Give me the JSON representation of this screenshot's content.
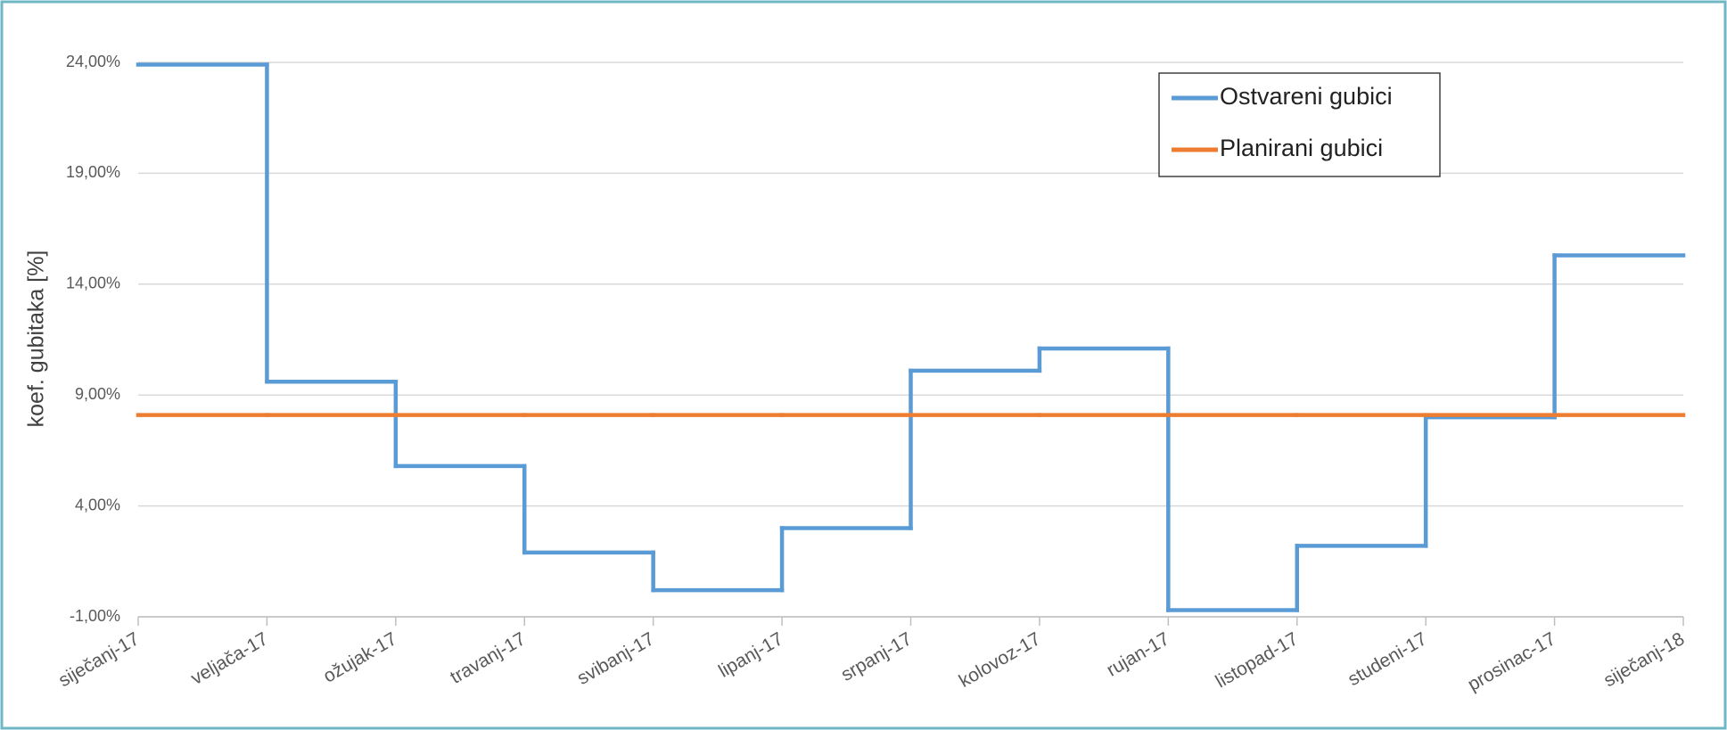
{
  "chart_data": {
    "type": "step",
    "y_label": "koef. gubitaka [%]",
    "categories": [
      "siječanj-17",
      "veljača-17",
      "ožujak-17",
      "travanj-17",
      "svibanj-17",
      "lipanj-17",
      "srpanj-17",
      "kolovoz-17",
      "rujan-17",
      "listopad-17",
      "studeni-17",
      "prosinac-17",
      "siječanj-18"
    ],
    "series": [
      {
        "name": "Ostvareni gubici",
        "color": "#5b9bd5",
        "values": [
          23.9,
          9.6,
          5.8,
          1.9,
          0.2,
          3.0,
          10.1,
          11.1,
          -0.7,
          2.2,
          8.0,
          15.3,
          15.3
        ]
      },
      {
        "name": "Planirani gubici",
        "color": "#ed7d31",
        "values": [
          8.1,
          8.1,
          8.1,
          8.1,
          8.1,
          8.1,
          8.1,
          8.1,
          8.1,
          8.1,
          8.1,
          8.1,
          8.1
        ]
      }
    ],
    "ylim": [
      -1,
      24
    ],
    "yticks": [
      {
        "value": -1,
        "label": "-1,00%"
      },
      {
        "value": 4,
        "label": "4,00%"
      },
      {
        "value": 9,
        "label": "9,00%"
      },
      {
        "value": 14,
        "label": "14,00%"
      },
      {
        "value": 19,
        "label": "19,00%"
      },
      {
        "value": 24,
        "label": "24,00%"
      }
    ],
    "grid": true,
    "legend": "upper right"
  }
}
